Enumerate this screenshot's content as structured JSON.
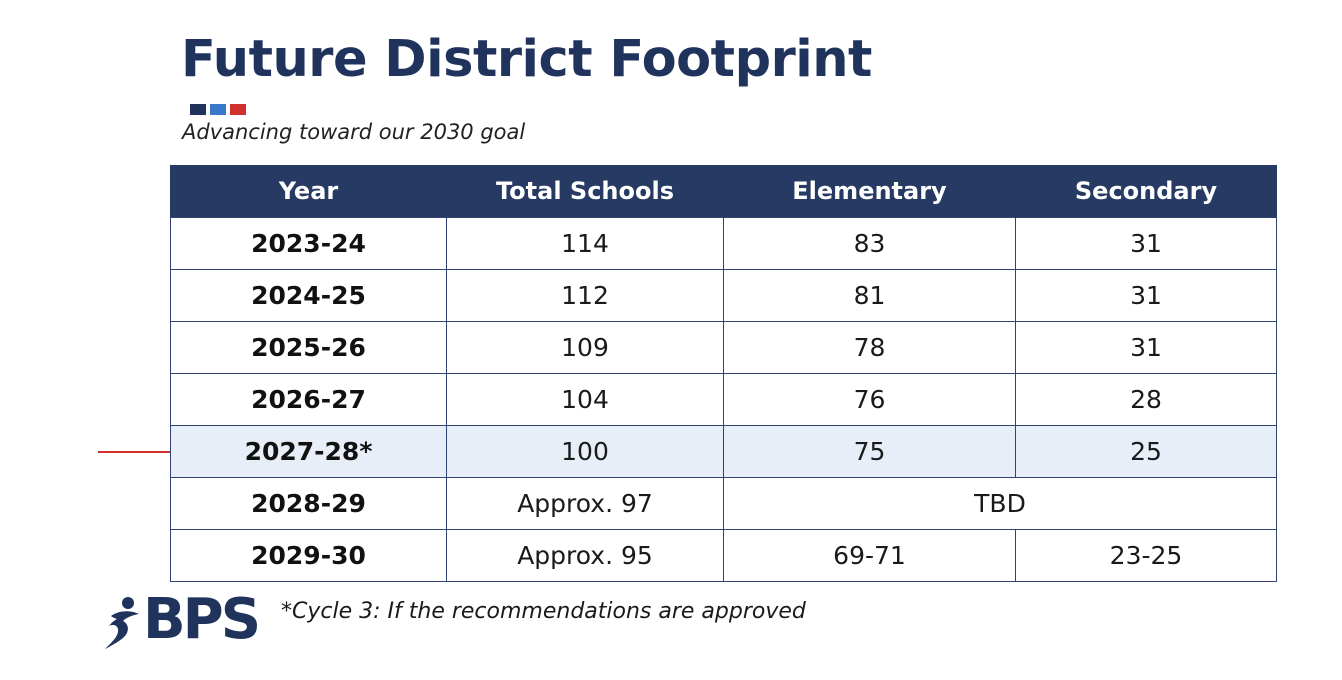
{
  "slide": {
    "title": "Future District Footprint",
    "subtitle": "Advancing toward our 2030 goal",
    "accent_colors": [
      "#1f335c",
      "#3a78c9",
      "#d0312d"
    ]
  },
  "table": {
    "headers": {
      "year": "Year",
      "total": "Total Schools",
      "elementary": "Elementary",
      "secondary": "Secondary"
    },
    "rows": [
      {
        "year": "2023-24",
        "total": "114",
        "elementary": "83",
        "secondary": "31"
      },
      {
        "year": "2024-25",
        "total": "112",
        "elementary": "81",
        "secondary": "31"
      },
      {
        "year": "2025-26",
        "total": "109",
        "elementary": "78",
        "secondary": "31"
      },
      {
        "year": "2026-27",
        "total": "104",
        "elementary": "76",
        "secondary": "28"
      },
      {
        "year": "2027-28*",
        "total": "100",
        "elementary": "75",
        "secondary": "25"
      },
      {
        "year": "2028-29",
        "total": "Approx. 97",
        "elem_sec_combined": "TBD"
      },
      {
        "year": "2029-30",
        "total": "Approx. 95",
        "elementary": "69-71",
        "secondary": "23-25"
      }
    ],
    "highlight_color": "#e8eef7",
    "header_color": "#263a63"
  },
  "pointer": {
    "color": "#d0312d"
  },
  "logo": {
    "text": "BPS",
    "color": "#1f335c"
  },
  "footnote": "*Cycle 3: If the recommendations are approved"
}
